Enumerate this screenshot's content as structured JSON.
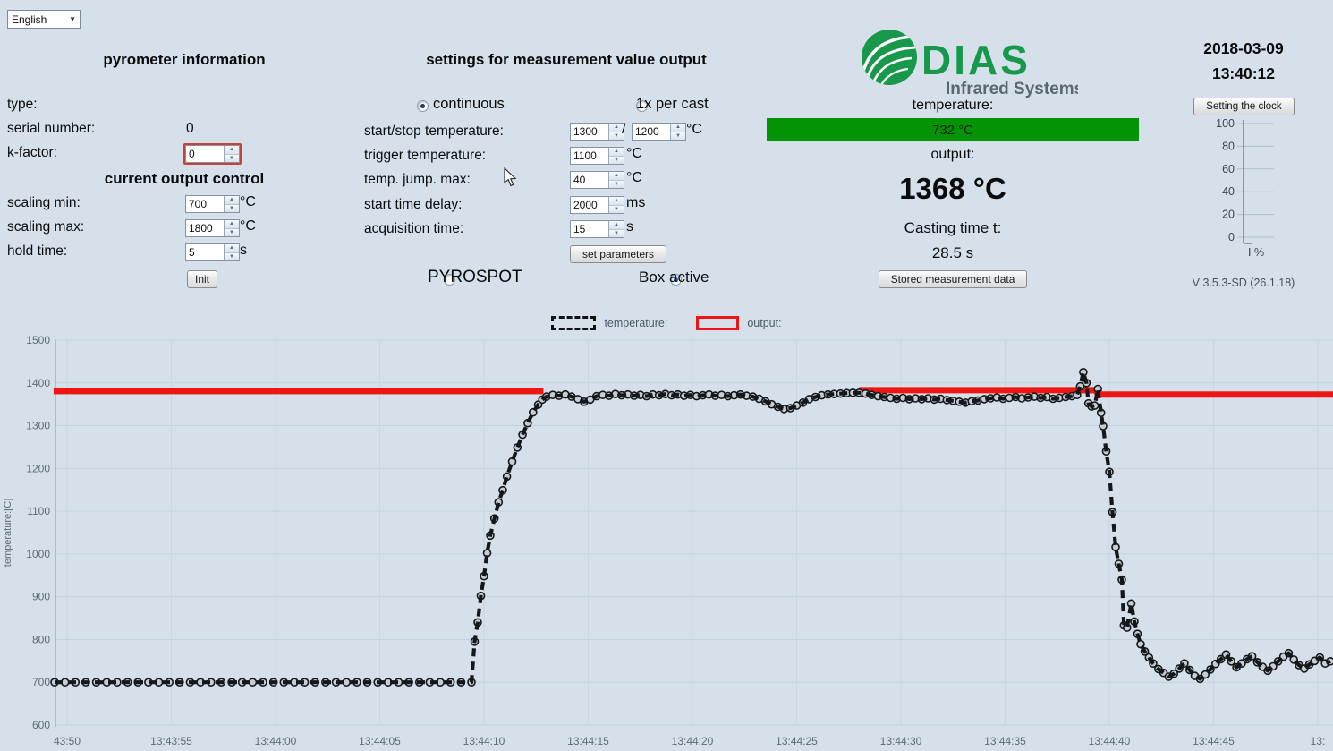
{
  "language_select": {
    "value": "English"
  },
  "pyrometer_info": {
    "title": "pyrometer information",
    "type_label": "type:",
    "type_value": "",
    "serial_label": "serial number:",
    "serial_value": "0",
    "kfactor_label": "k-factor:",
    "kfactor_value": "0",
    "output_control_title": "current output control",
    "scaling_min_label": "scaling min:",
    "scaling_min_value": "700",
    "scaling_min_unit": "°C",
    "scaling_max_label": "scaling max:",
    "scaling_max_value": "1800",
    "scaling_max_unit": "°C",
    "hold_time_label": "hold time:",
    "hold_time_value": "5",
    "hold_time_unit": "s",
    "init_button": "Init"
  },
  "settings": {
    "title": "settings for measurement value output",
    "radio_continuous": {
      "label": "continuous",
      "selected": true
    },
    "radio_once": {
      "label": "1x per cast",
      "selected": false
    },
    "rows": [
      {
        "label": "start/stop temperature:",
        "value": "1300",
        "separator": "/",
        "value2": "1200",
        "unit": "°C"
      },
      {
        "label": "trigger temperature:",
        "value": "1100",
        "unit": "°C"
      },
      {
        "label": "temp. jump. max:",
        "value": "40",
        "unit": "°C"
      },
      {
        "label": "start time delay:",
        "value": "2000",
        "unit": "ms"
      },
      {
        "label": "acquisition time:",
        "value": "15",
        "unit": "s"
      }
    ],
    "set_parameters_button": "set parameters",
    "radio_pyrospot": {
      "label": "PYROSPOT",
      "selected": false
    },
    "radio_box_active": {
      "label": "Box active",
      "selected": true
    }
  },
  "status": {
    "logo_text": "DIAS",
    "logo_subtext": "Infrared Systems",
    "logo_green": "#17984b",
    "temperature_label": "temperature:",
    "temperature_value": "732 °C",
    "temperature_bar_color": "#029405",
    "output_label": "output:",
    "output_value": "1368 °C",
    "casting_label": "Casting time t:",
    "casting_value": "28.5 s",
    "stored_button": "Stored measurement data"
  },
  "clock": {
    "date": "2018-03-09",
    "time": "13:40:12",
    "button": "Setting the clock",
    "gauge_ticks": [
      100,
      80,
      60,
      40,
      20,
      0
    ],
    "gauge_label": "I %",
    "version": "V 3.5.3-SD (26.1.18)"
  },
  "legend": {
    "temperature_label": "temperature:",
    "output_label": "output:"
  },
  "chart_data": {
    "type": "line",
    "title": "",
    "ylabel": "temperature:[C]",
    "ylim": [
      600,
      1500
    ],
    "yticks": [
      1500,
      1400,
      1300,
      1200,
      1100,
      1000,
      900,
      800,
      700,
      600
    ],
    "x_unit": "seconds after 13:43:50",
    "xlim_seconds": [
      -0.65,
      60.8
    ],
    "grid": true,
    "legend_position": "top-center",
    "xticks": [
      {
        "t": 0,
        "label": "43:50"
      },
      {
        "t": 5,
        "label": "13:43:55"
      },
      {
        "t": 10,
        "label": "13:44:00"
      },
      {
        "t": 15,
        "label": "13:44:05"
      },
      {
        "t": 20,
        "label": "13:44:10"
      },
      {
        "t": 25,
        "label": "13:44:15"
      },
      {
        "t": 30,
        "label": "13:44:20"
      },
      {
        "t": 35,
        "label": "13:44:25"
      },
      {
        "t": 40,
        "label": "13:44:30"
      },
      {
        "t": 45,
        "label": "13:44:35"
      },
      {
        "t": 50,
        "label": "13:44:40"
      },
      {
        "t": 55,
        "label": "13:44:45"
      },
      {
        "t": 60,
        "label": "13:"
      }
    ],
    "series": [
      {
        "name": "temperature",
        "style": "dashed-with-markers",
        "color": "#15181b",
        "points": [
          [
            -0.6,
            700
          ],
          [
            -0.1,
            700
          ],
          [
            0.4,
            700
          ],
          [
            0.9,
            700
          ],
          [
            1.4,
            700
          ],
          [
            1.9,
            700
          ],
          [
            2.4,
            700
          ],
          [
            2.9,
            700
          ],
          [
            3.4,
            700
          ],
          [
            3.9,
            700
          ],
          [
            4.4,
            700
          ],
          [
            4.9,
            700
          ],
          [
            5.4,
            700
          ],
          [
            5.9,
            700
          ],
          [
            6.4,
            700
          ],
          [
            6.9,
            700
          ],
          [
            7.4,
            700
          ],
          [
            7.9,
            700
          ],
          [
            8.4,
            700
          ],
          [
            8.9,
            700
          ],
          [
            9.4,
            700
          ],
          [
            9.9,
            700
          ],
          [
            10.4,
            700
          ],
          [
            10.9,
            700
          ],
          [
            11.4,
            700
          ],
          [
            11.9,
            700
          ],
          [
            12.4,
            700
          ],
          [
            12.9,
            700
          ],
          [
            13.4,
            700
          ],
          [
            13.9,
            700
          ],
          [
            14.4,
            700
          ],
          [
            14.9,
            700
          ],
          [
            15.4,
            700
          ],
          [
            15.9,
            700
          ],
          [
            16.4,
            700
          ],
          [
            16.9,
            700
          ],
          [
            17.4,
            700
          ],
          [
            17.9,
            700
          ],
          [
            18.4,
            700
          ],
          [
            18.9,
            700
          ],
          [
            19.4,
            700
          ],
          [
            19.55,
            795
          ],
          [
            19.7,
            840
          ],
          [
            19.85,
            902
          ],
          [
            20.0,
            948
          ],
          [
            20.15,
            1002
          ],
          [
            20.3,
            1043
          ],
          [
            20.5,
            1083
          ],
          [
            20.7,
            1121
          ],
          [
            20.9,
            1149
          ],
          [
            21.1,
            1181
          ],
          [
            21.35,
            1216
          ],
          [
            21.6,
            1249
          ],
          [
            21.85,
            1279
          ],
          [
            22.1,
            1306
          ],
          [
            22.35,
            1331
          ],
          [
            22.6,
            1349
          ],
          [
            22.8,
            1361
          ],
          [
            23.0,
            1368
          ],
          [
            23.3,
            1372
          ],
          [
            23.6,
            1370
          ],
          [
            23.9,
            1373
          ],
          [
            24.2,
            1368
          ],
          [
            24.5,
            1362
          ],
          [
            24.8,
            1356
          ],
          [
            25.1,
            1361
          ],
          [
            25.4,
            1369
          ],
          [
            25.7,
            1372
          ],
          [
            26.0,
            1370
          ],
          [
            26.3,
            1374
          ],
          [
            26.6,
            1371
          ],
          [
            26.9,
            1373
          ],
          [
            27.2,
            1370
          ],
          [
            27.5,
            1372
          ],
          [
            27.8,
            1369
          ],
          [
            28.1,
            1373
          ],
          [
            28.4,
            1371
          ],
          [
            28.7,
            1374
          ],
          [
            29.0,
            1371
          ],
          [
            29.3,
            1373
          ],
          [
            29.6,
            1370
          ],
          [
            29.9,
            1372
          ],
          [
            30.2,
            1369
          ],
          [
            30.5,
            1371
          ],
          [
            30.8,
            1373
          ],
          [
            31.1,
            1370
          ],
          [
            31.4,
            1372
          ],
          [
            31.7,
            1369
          ],
          [
            32.0,
            1371
          ],
          [
            32.3,
            1373
          ],
          [
            32.6,
            1370
          ],
          [
            32.9,
            1368
          ],
          [
            33.2,
            1363
          ],
          [
            33.5,
            1357
          ],
          [
            33.8,
            1350
          ],
          [
            34.1,
            1344
          ],
          [
            34.4,
            1339
          ],
          [
            34.7,
            1341
          ],
          [
            35.0,
            1347
          ],
          [
            35.3,
            1354
          ],
          [
            35.6,
            1362
          ],
          [
            35.9,
            1367
          ],
          [
            36.2,
            1371
          ],
          [
            36.5,
            1373
          ],
          [
            36.8,
            1374
          ],
          [
            37.1,
            1375
          ],
          [
            37.4,
            1376
          ],
          [
            37.7,
            1377
          ],
          [
            38.0,
            1377
          ],
          [
            38.3,
            1375
          ],
          [
            38.6,
            1372
          ],
          [
            38.9,
            1369
          ],
          [
            39.2,
            1367
          ],
          [
            39.5,
            1365
          ],
          [
            39.8,
            1363
          ],
          [
            40.1,
            1365
          ],
          [
            40.4,
            1362
          ],
          [
            40.7,
            1364
          ],
          [
            41.0,
            1362
          ],
          [
            41.3,
            1364
          ],
          [
            41.6,
            1361
          ],
          [
            41.9,
            1363
          ],
          [
            42.2,
            1360
          ],
          [
            42.5,
            1358
          ],
          [
            42.8,
            1356
          ],
          [
            43.1,
            1354
          ],
          [
            43.4,
            1357
          ],
          [
            43.7,
            1359
          ],
          [
            44.0,
            1362
          ],
          [
            44.3,
            1364
          ],
          [
            44.6,
            1366
          ],
          [
            44.9,
            1363
          ],
          [
            45.2,
            1365
          ],
          [
            45.5,
            1367
          ],
          [
            45.8,
            1364
          ],
          [
            46.1,
            1366
          ],
          [
            46.4,
            1368
          ],
          [
            46.7,
            1365
          ],
          [
            47.0,
            1367
          ],
          [
            47.3,
            1363
          ],
          [
            47.6,
            1365
          ],
          [
            47.9,
            1367
          ],
          [
            48.2,
            1369
          ],
          [
            48.45,
            1372
          ],
          [
            48.6,
            1392
          ],
          [
            48.75,
            1425
          ],
          [
            48.9,
            1400
          ],
          [
            49.0,
            1352
          ],
          [
            49.15,
            1345
          ],
          [
            49.3,
            1347
          ],
          [
            49.45,
            1386
          ],
          [
            49.6,
            1330
          ],
          [
            49.7,
            1299
          ],
          [
            49.85,
            1240
          ],
          [
            50.0,
            1192
          ],
          [
            50.15,
            1098
          ],
          [
            50.3,
            1016
          ],
          [
            50.45,
            977
          ],
          [
            50.6,
            940
          ],
          [
            50.7,
            833
          ],
          [
            50.85,
            828
          ],
          [
            51.05,
            884
          ],
          [
            51.2,
            842
          ],
          [
            51.35,
            813
          ],
          [
            51.5,
            789
          ],
          [
            51.7,
            772
          ],
          [
            51.9,
            758
          ],
          [
            52.1,
            744
          ],
          [
            52.35,
            731
          ],
          [
            52.6,
            722
          ],
          [
            52.85,
            713
          ],
          [
            53.1,
            720
          ],
          [
            53.35,
            732
          ],
          [
            53.6,
            744
          ],
          [
            53.85,
            729
          ],
          [
            54.1,
            715
          ],
          [
            54.35,
            708
          ],
          [
            54.6,
            718
          ],
          [
            54.85,
            730
          ],
          [
            55.1,
            743
          ],
          [
            55.35,
            754
          ],
          [
            55.6,
            765
          ],
          [
            55.85,
            749
          ],
          [
            56.1,
            735
          ],
          [
            56.35,
            744
          ],
          [
            56.6,
            754
          ],
          [
            56.85,
            761
          ],
          [
            57.1,
            747
          ],
          [
            57.35,
            736
          ],
          [
            57.6,
            727
          ],
          [
            57.85,
            737
          ],
          [
            58.1,
            749
          ],
          [
            58.35,
            760
          ],
          [
            58.6,
            768
          ],
          [
            58.85,
            753
          ],
          [
            59.1,
            740
          ],
          [
            59.35,
            732
          ],
          [
            59.6,
            742
          ],
          [
            59.85,
            750
          ],
          [
            60.1,
            758
          ],
          [
            60.35,
            744
          ],
          [
            60.6,
            749
          ]
        ]
      },
      {
        "name": "output",
        "style": "solid",
        "color": "#ee1512",
        "segments": [
          {
            "width": 7,
            "points": [
              [
                -0.65,
                1381
              ],
              [
                22.85,
                1381
              ]
            ]
          },
          {
            "width": 3.5,
            "points": [
              [
                23.0,
                1368
              ],
              [
                23.6,
                1370
              ],
              [
                24.2,
                1368
              ],
              [
                24.8,
                1356
              ],
              [
                25.4,
                1369
              ],
              [
                26.0,
                1370
              ],
              [
                26.6,
                1371
              ],
              [
                27.2,
                1370
              ],
              [
                27.8,
                1369
              ],
              [
                28.4,
                1371
              ],
              [
                29.0,
                1371
              ],
              [
                29.6,
                1370
              ],
              [
                30.2,
                1369
              ],
              [
                30.8,
                1373
              ],
              [
                31.4,
                1372
              ],
              [
                32.0,
                1371
              ],
              [
                32.6,
                1370
              ],
              [
                33.2,
                1363
              ],
              [
                33.8,
                1350
              ],
              [
                34.4,
                1339
              ],
              [
                35.0,
                1347
              ],
              [
                35.6,
                1362
              ],
              [
                36.2,
                1371
              ],
              [
                36.8,
                1374
              ],
              [
                37.4,
                1376
              ],
              [
                38.0,
                1378
              ]
            ]
          },
          {
            "width": 7,
            "points": [
              [
                38.0,
                1383
              ],
              [
                49.35,
                1383
              ],
              [
                49.45,
                1373
              ],
              [
                60.8,
                1373
              ]
            ]
          }
        ]
      }
    ]
  }
}
